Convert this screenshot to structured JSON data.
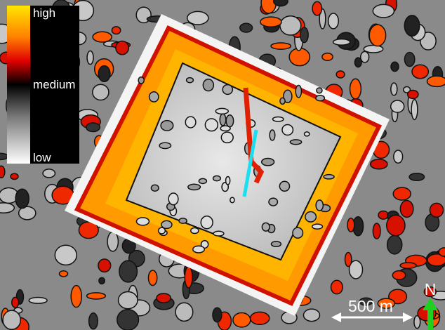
{
  "legend": {
    "labels": [
      "high",
      "medium",
      "low"
    ]
  },
  "scale_bar": {
    "label": "500 m"
  },
  "north_arrow": {
    "label": "N"
  }
}
